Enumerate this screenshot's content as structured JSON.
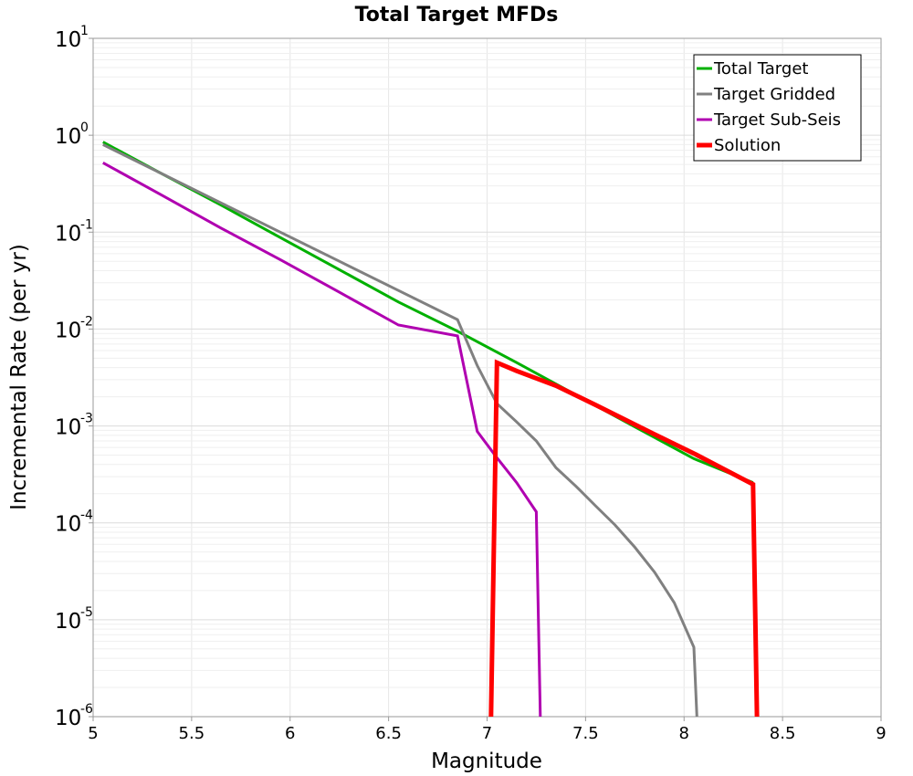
{
  "chart_data": {
    "type": "line",
    "title": "Total Target MFDs",
    "xlabel": "Magnitude",
    "ylabel": "Incremental Rate (per yr)",
    "xlim": [
      5,
      9
    ],
    "ylim": [
      1e-06,
      10
    ],
    "yscale": "log",
    "grid": true,
    "legend_position": "top-right",
    "xticks": [
      "5",
      "5.5",
      "6",
      "6.5",
      "7",
      "7.5",
      "8",
      "8.5",
      "9"
    ],
    "yticks": [
      {
        "base": "10",
        "exp": "1"
      },
      {
        "base": "10",
        "exp": "0"
      },
      {
        "base": "10",
        "exp": "-1"
      },
      {
        "base": "10",
        "exp": "-2"
      },
      {
        "base": "10",
        "exp": "-3"
      },
      {
        "base": "10",
        "exp": "-4"
      },
      {
        "base": "10",
        "exp": "-5"
      },
      {
        "base": "10",
        "exp": "-6"
      }
    ],
    "series": [
      {
        "name": "Total Target",
        "color": "#00b000",
        "width": 3,
        "points": [
          [
            5.05,
            0.85
          ],
          [
            5.35,
            0.4
          ],
          [
            5.65,
            0.19
          ],
          [
            5.95,
            0.088
          ],
          [
            6.25,
            0.041
          ],
          [
            6.55,
            0.019
          ],
          [
            6.85,
            0.0095
          ],
          [
            7.15,
            0.0045
          ],
          [
            7.45,
            0.0021
          ],
          [
            7.75,
            0.00098
          ],
          [
            8.05,
            0.00046
          ],
          [
            8.35,
            0.00026
          ]
        ]
      },
      {
        "name": "Target Gridded",
        "color": "#808080",
        "width": 3,
        "points": [
          [
            5.05,
            0.8
          ],
          [
            5.35,
            0.4
          ],
          [
            5.65,
            0.2
          ],
          [
            5.95,
            0.1
          ],
          [
            6.25,
            0.05
          ],
          [
            6.55,
            0.025
          ],
          [
            6.85,
            0.0125
          ],
          [
            6.95,
            0.0042
          ],
          [
            7.05,
            0.0017
          ],
          [
            7.15,
            0.0011
          ],
          [
            7.25,
            0.0007
          ],
          [
            7.35,
            0.00037
          ],
          [
            7.45,
            0.00024
          ],
          [
            7.55,
            0.00015
          ],
          [
            7.65,
            9.5e-05
          ],
          [
            7.75,
            5.6e-05
          ],
          [
            7.85,
            3.1e-05
          ],
          [
            7.95,
            1.5e-05
          ],
          [
            8.05,
            5.2e-06
          ],
          [
            8.065,
            7e-07
          ]
        ]
      },
      {
        "name": "Target Sub-Seis",
        "color": "#b000b0",
        "width": 3,
        "points": [
          [
            5.05,
            0.52
          ],
          [
            5.35,
            0.24
          ],
          [
            5.65,
            0.11
          ],
          [
            5.95,
            0.052
          ],
          [
            6.25,
            0.024
          ],
          [
            6.55,
            0.011
          ],
          [
            6.85,
            0.0085
          ],
          [
            6.95,
            0.00088
          ],
          [
            7.05,
            0.00047
          ],
          [
            7.15,
            0.00026
          ],
          [
            7.25,
            0.00013
          ],
          [
            7.27,
            7e-07
          ]
        ]
      },
      {
        "name": "Solution",
        "color": "#ff0000",
        "width": 5,
        "points": [
          [
            7.02,
            7e-07
          ],
          [
            7.05,
            0.0045
          ],
          [
            7.15,
            0.0037
          ],
          [
            7.35,
            0.0026
          ],
          [
            7.55,
            0.00165
          ],
          [
            7.85,
            0.00082
          ],
          [
            8.05,
            0.00052
          ],
          [
            8.35,
            0.00025
          ],
          [
            8.37,
            7e-07
          ]
        ]
      }
    ]
  }
}
